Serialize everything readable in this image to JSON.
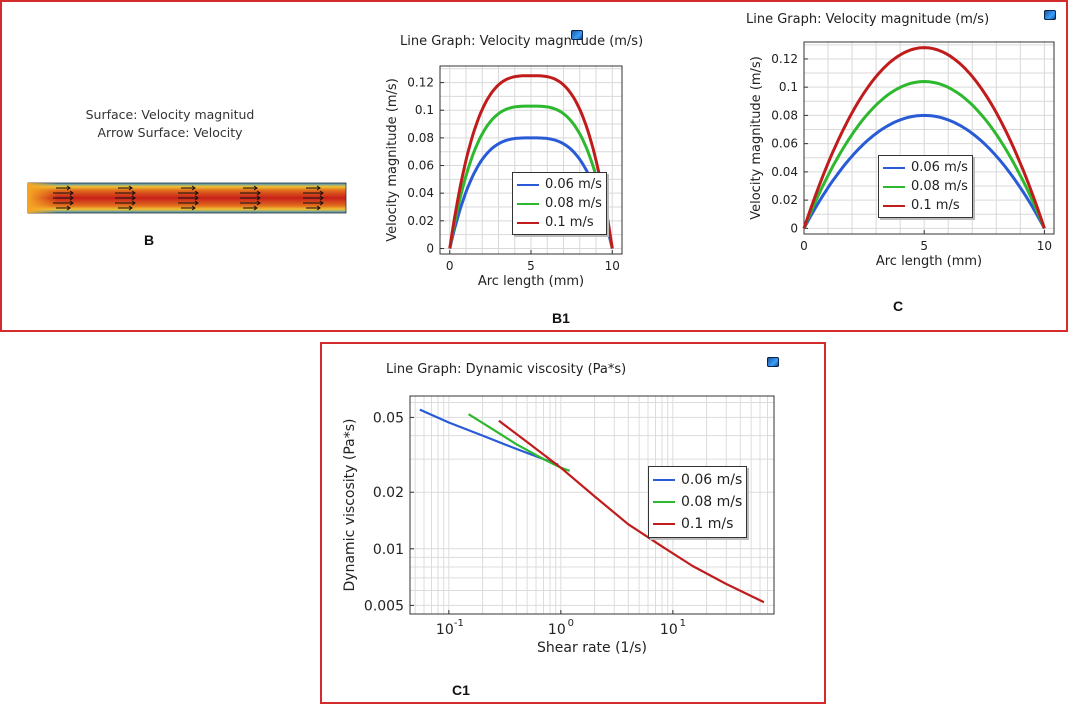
{
  "panel_labels": {
    "b": "B",
    "b1": "B1",
    "c": "C",
    "c1": "C1"
  },
  "surface_plot": {
    "title_line1": "Surface: Velocity magnitud",
    "title_line2": "Arrow Surface: Velocity"
  },
  "colors": {
    "frame": "#d52b2b",
    "blue": "#2a5bd7",
    "green": "#2eb82e",
    "red": "#c01c1c"
  },
  "icons": {
    "export": "camera-icon"
  },
  "chart_data": [
    {
      "id": "b1",
      "type": "line",
      "title": "Line Graph: Velocity magnitude (m/s)",
      "xlabel": "Arc length (mm)",
      "ylabel": "Velocity magnitude (m/s)",
      "xlim": [
        -0.6,
        10.6
      ],
      "ylim": [
        -0.004,
        0.132
      ],
      "xticks": [
        0,
        5,
        10
      ],
      "yticks": [
        0,
        0.02,
        0.04,
        0.06,
        0.08,
        0.1,
        0.12
      ],
      "ytick_labels": [
        "0",
        "0.02",
        "0.04",
        "0.06",
        "0.08",
        "0.1",
        "0.12"
      ],
      "grid": true,
      "legend_position": "center-right",
      "profile": "blunt",
      "series": [
        {
          "name": "0.06 m/s",
          "color": "#2a5bd7",
          "peak": 0.08
        },
        {
          "name": "0.08 m/s",
          "color": "#2eb82e",
          "peak": 0.103
        },
        {
          "name": "0.1 m/s",
          "color": "#c01c1c",
          "peak": 0.125
        }
      ]
    },
    {
      "id": "c",
      "type": "line",
      "title": "Line Graph: Velocity magnitude (m/s)",
      "xlabel": "Arc length (mm)",
      "ylabel": "Velocity magnitude (m/s)",
      "xlim": [
        0,
        10.4
      ],
      "ylim": [
        -0.004,
        0.132
      ],
      "xticks": [
        0,
        5,
        10
      ],
      "yticks": [
        0,
        0.02,
        0.04,
        0.06,
        0.08,
        0.1,
        0.12
      ],
      "ytick_labels": [
        "0",
        "0.02",
        "0.04",
        "0.06",
        "0.08",
        "0.1",
        "0.12"
      ],
      "grid": true,
      "legend_position": "center-right",
      "profile": "parabolic",
      "series": [
        {
          "name": "0.06 m/s",
          "color": "#2a5bd7",
          "peak": 0.08
        },
        {
          "name": "0.08 m/s",
          "color": "#2eb82e",
          "peak": 0.104
        },
        {
          "name": "0.1 m/s",
          "color": "#c01c1c",
          "peak": 0.128
        }
      ]
    },
    {
      "id": "c1",
      "type": "line",
      "title": "Line Graph: Dynamic viscosity (Pa*s)",
      "xlabel": "Shear rate (1/s)",
      "ylabel": "Dynamic viscosity (Pa*s)",
      "xscale": "log",
      "yscale": "log",
      "xlim": [
        0.045,
        80
      ],
      "ylim": [
        0.0045,
        0.065
      ],
      "xticks": [
        0.1,
        1,
        10
      ],
      "xtick_labels": [
        {
          "base": "10",
          "exp": "-1"
        },
        {
          "base": "10",
          "exp": "0"
        },
        {
          "base": "10",
          "exp": "1"
        }
      ],
      "yticks": [
        0.005,
        0.01,
        0.02,
        0.05
      ],
      "ytick_labels": [
        "0.005",
        "0.01",
        "0.02",
        "0.05"
      ],
      "grid": true,
      "legend_position": "center-right",
      "series": [
        {
          "name": "0.06 m/s",
          "color": "#2a5bd7",
          "x": [
            0.055,
            0.1,
            0.2,
            0.4,
            0.7,
            0.95
          ],
          "y": [
            0.055,
            0.047,
            0.04,
            0.034,
            0.03,
            0.028
          ]
        },
        {
          "name": "0.08 m/s",
          "color": "#2eb82e",
          "x": [
            0.15,
            0.25,
            0.4,
            0.7,
            1.0,
            1.2
          ],
          "y": [
            0.052,
            0.043,
            0.036,
            0.03,
            0.027,
            0.026
          ]
        },
        {
          "name": "0.1 m/s",
          "color": "#c01c1c",
          "x": [
            0.28,
            0.5,
            1.0,
            2,
            4,
            8,
            15,
            30,
            65
          ],
          "y": [
            0.048,
            0.037,
            0.027,
            0.019,
            0.0135,
            0.0103,
            0.0081,
            0.0065,
            0.0052
          ]
        }
      ]
    }
  ]
}
